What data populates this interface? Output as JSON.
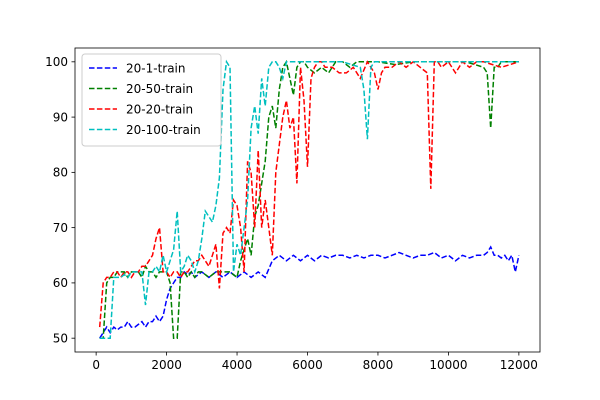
{
  "chart_data": {
    "type": "line",
    "title": "",
    "xlabel": "",
    "ylabel": "",
    "xlim": [
      -600,
      12600
    ],
    "ylim": [
      47.5,
      102.5
    ],
    "xticks": [
      0,
      2000,
      4000,
      6000,
      8000,
      10000,
      12000
    ],
    "yticks": [
      50,
      60,
      70,
      80,
      90,
      100
    ],
    "xtick_labels": [
      "0",
      "2000",
      "4000",
      "6000",
      "8000",
      "10000",
      "12000"
    ],
    "ytick_labels": [
      "50",
      "60",
      "70",
      "80",
      "90",
      "100"
    ],
    "grid": false,
    "legend_position": "top-left",
    "series": [
      {
        "name": "20-1-train",
        "color": "#0000ff",
        "x": [
          100,
          200,
          300,
          400,
          500,
          600,
          700,
          800,
          900,
          1000,
          1100,
          1200,
          1300,
          1400,
          1500,
          1600,
          1700,
          1800,
          1900,
          2000,
          2100,
          2200,
          2300,
          2400,
          2500,
          2600,
          2700,
          2800,
          2900,
          3000,
          3200,
          3400,
          3600,
          3800,
          4000,
          4200,
          4400,
          4600,
          4800,
          5000,
          5200,
          5400,
          5600,
          5800,
          6000,
          6200,
          6400,
          6600,
          6800,
          7000,
          7200,
          7400,
          7600,
          7800,
          8000,
          8200,
          8400,
          8600,
          8800,
          9000,
          9200,
          9400,
          9600,
          9800,
          10000,
          10200,
          10400,
          10600,
          10800,
          11000,
          11100,
          11200,
          11300,
          11400,
          11500,
          11600,
          11700,
          11800,
          11900,
          12000
        ],
        "values": [
          50,
          51,
          52,
          51,
          52,
          51.5,
          52,
          52,
          53,
          52,
          52,
          52.5,
          53,
          52,
          53,
          53,
          54,
          53,
          54,
          57,
          59,
          60,
          61,
          61,
          62,
          61.5,
          62,
          61,
          61.5,
          62,
          61,
          62,
          61,
          62,
          61,
          62,
          61,
          62,
          61,
          64,
          65,
          64,
          65,
          64,
          65,
          64,
          65,
          64.5,
          65,
          65,
          64.5,
          65,
          64.5,
          65,
          65,
          64.5,
          65,
          65.5,
          65,
          64.5,
          65,
          65,
          65.5,
          64.5,
          65,
          64,
          65,
          64.5,
          65,
          65,
          65.5,
          66.5,
          65,
          65,
          64.5,
          65,
          64,
          65,
          62,
          65
        ]
      },
      {
        "name": "20-50-train",
        "color": "#008000",
        "x": [
          100,
          200,
          300,
          400,
          500,
          600,
          700,
          800,
          900,
          1000,
          1100,
          1200,
          1300,
          1400,
          1500,
          1600,
          1700,
          1800,
          1900,
          2000,
          2100,
          2200,
          2300,
          2400,
          2500,
          2600,
          2700,
          2800,
          2900,
          3000,
          3200,
          3400,
          3600,
          3800,
          4000,
          4100,
          4200,
          4300,
          4400,
          4500,
          4600,
          4700,
          4800,
          4900,
          5000,
          5100,
          5200,
          5300,
          5400,
          5500,
          5600,
          5700,
          5800,
          5900,
          6000,
          6200,
          6400,
          6600,
          6800,
          7000,
          7200,
          7400,
          7600,
          7800,
          8000,
          8500,
          9000,
          9500,
          10000,
          10500,
          11000,
          11100,
          11200,
          11300,
          11400,
          11500,
          12000
        ],
        "values": [
          50,
          50,
          60,
          61,
          61,
          62,
          62,
          62,
          61,
          62,
          62,
          62,
          61,
          63,
          62,
          62,
          61,
          62,
          62,
          62,
          60,
          50,
          50,
          62,
          62,
          61,
          62,
          61,
          62,
          62,
          61,
          62,
          62,
          62,
          61,
          64,
          66,
          68,
          65,
          72,
          74,
          78,
          82,
          90,
          92,
          88,
          95,
          99,
          100,
          97,
          94,
          99,
          100,
          100,
          99,
          98,
          99,
          98,
          100,
          100,
          99,
          100,
          100,
          100,
          100,
          99.5,
          100,
          100,
          100,
          100,
          99,
          98,
          88,
          99,
          99,
          100,
          100
        ]
      },
      {
        "name": "20-20-train",
        "color": "#ff0000",
        "x": [
          100,
          200,
          300,
          400,
          500,
          600,
          700,
          800,
          900,
          1000,
          1100,
          1200,
          1300,
          1400,
          1500,
          1600,
          1700,
          1800,
          1900,
          2000,
          2100,
          2200,
          2300,
          2400,
          2500,
          2600,
          2700,
          2800,
          2900,
          3000,
          3100,
          3200,
          3300,
          3400,
          3500,
          3600,
          3700,
          3800,
          3900,
          4000,
          4100,
          4200,
          4300,
          4400,
          4500,
          4600,
          4700,
          4800,
          4900,
          5000,
          5100,
          5200,
          5300,
          5400,
          5500,
          5600,
          5700,
          5800,
          5900,
          6000,
          6100,
          6200,
          6300,
          6400,
          6500,
          6700,
          6900,
          7100,
          7300,
          7500,
          7700,
          7900,
          8000,
          8100,
          8200,
          8400,
          8600,
          8800,
          9000,
          9200,
          9400,
          9500,
          9600,
          9700,
          9800,
          10000,
          10200,
          10400,
          10600,
          10800,
          11000,
          11500,
          12000
        ],
        "values": [
          52,
          60,
          61,
          61,
          62,
          62,
          61,
          62,
          62,
          61,
          62,
          62,
          63,
          63,
          64,
          65,
          68,
          70,
          62,
          62,
          61,
          62,
          62,
          61,
          62,
          62,
          63,
          64,
          64,
          65,
          64,
          63,
          65,
          67,
          59,
          69,
          70,
          69,
          75,
          74,
          70,
          62,
          82,
          80,
          70,
          84,
          70,
          75,
          70,
          65,
          80,
          85,
          90,
          93,
          88,
          90,
          78,
          99,
          93,
          81,
          97,
          99,
          100,
          100,
          99,
          99,
          98,
          98,
          99,
          97,
          100,
          98,
          95,
          98,
          99,
          99,
          100,
          99,
          100,
          99,
          98,
          77,
          100,
          100,
          99,
          100,
          98,
          100,
          99,
          100,
          100,
          99,
          100
        ]
      },
      {
        "name": "20-100-train",
        "color": "#00bfbf",
        "x": [
          100,
          200,
          300,
          400,
          500,
          600,
          700,
          800,
          900,
          1000,
          1100,
          1200,
          1300,
          1400,
          1500,
          1600,
          1700,
          1800,
          1900,
          2000,
          2100,
          2200,
          2300,
          2400,
          2500,
          2600,
          2700,
          2800,
          2900,
          3000,
          3100,
          3200,
          3300,
          3400,
          3500,
          3600,
          3700,
          3800,
          3900,
          4000,
          4100,
          4200,
          4300,
          4400,
          4500,
          4600,
          4700,
          4800,
          4900,
          5000,
          5100,
          5200,
          5300,
          5400,
          5500,
          5600,
          5700,
          5800,
          6000,
          6500,
          7000,
          7500,
          7600,
          7700,
          7800,
          7900,
          8000,
          8500,
          9000,
          9500,
          10000,
          11000,
          12000
        ],
        "values": [
          50,
          50,
          50,
          50,
          61,
          61,
          61,
          61.5,
          61,
          62,
          62,
          62,
          62,
          56,
          62,
          62,
          63,
          62,
          65,
          62,
          64,
          66,
          73,
          62,
          63,
          65,
          64,
          62,
          64,
          68,
          73,
          72,
          71,
          74,
          79,
          95,
          100,
          99,
          62,
          67,
          65,
          70,
          75,
          88,
          92,
          87,
          97,
          92,
          99,
          100,
          100,
          99,
          97,
          100,
          100,
          100,
          100,
          100,
          100,
          100,
          100,
          99,
          95,
          86,
          99,
          100,
          100,
          100,
          100,
          100,
          100,
          100,
          100
        ]
      }
    ]
  }
}
